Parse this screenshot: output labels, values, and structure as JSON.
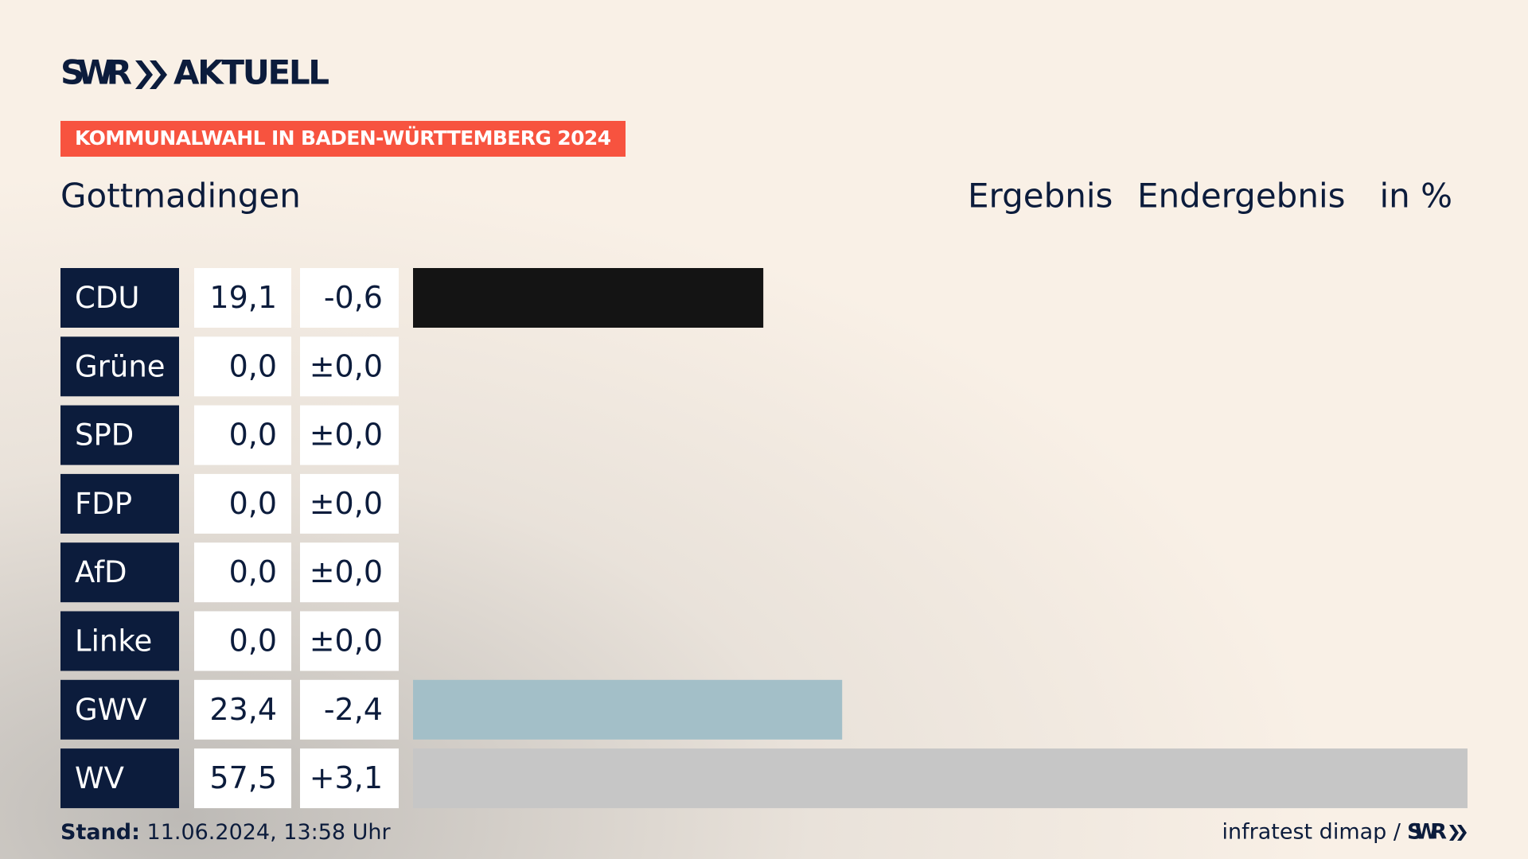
{
  "brand": {
    "name": "SWR",
    "product": "AKTUELL"
  },
  "chart_data": {
    "type": "bar",
    "kicker": "KOMMUNALWAHL IN BADEN-WÜRTTEMBERG 2024",
    "title": "Gottmadingen",
    "header_labels": [
      "Ergebnis",
      "Endergebnis",
      "in %"
    ],
    "categories": [
      "CDU",
      "Grüne",
      "SPD",
      "FDP",
      "AfD",
      "Linke",
      "GWV",
      "WV"
    ],
    "values": [
      19.1,
      0.0,
      0.0,
      0.0,
      0.0,
      0.0,
      23.4,
      57.5
    ],
    "value_labels": [
      "19,1",
      "0,0",
      "0,0",
      "0,0",
      "0,0",
      "0,0",
      "23,4",
      "57,5"
    ],
    "changes": [
      -0.6,
      0.0,
      0.0,
      0.0,
      0.0,
      0.0,
      -2.4,
      3.1
    ],
    "change_labels": [
      "-0,6",
      "±0,0",
      "±0,0",
      "±0,0",
      "±0,0",
      "±0,0",
      "-2,4",
      "+3,1"
    ],
    "colors": [
      "#141414",
      "#1aa037",
      "#e3000f",
      "#ffed00",
      "#009ee0",
      "#bf0a72",
      "#a3bfc8",
      "#c6c6c6"
    ],
    "xlim": [
      0,
      57.5
    ]
  },
  "footer": {
    "stand_label": "Stand:",
    "timestamp": "11.06.2024, 13:58 Uhr",
    "source": "infratest dimap /",
    "source_brand": "SWR"
  }
}
